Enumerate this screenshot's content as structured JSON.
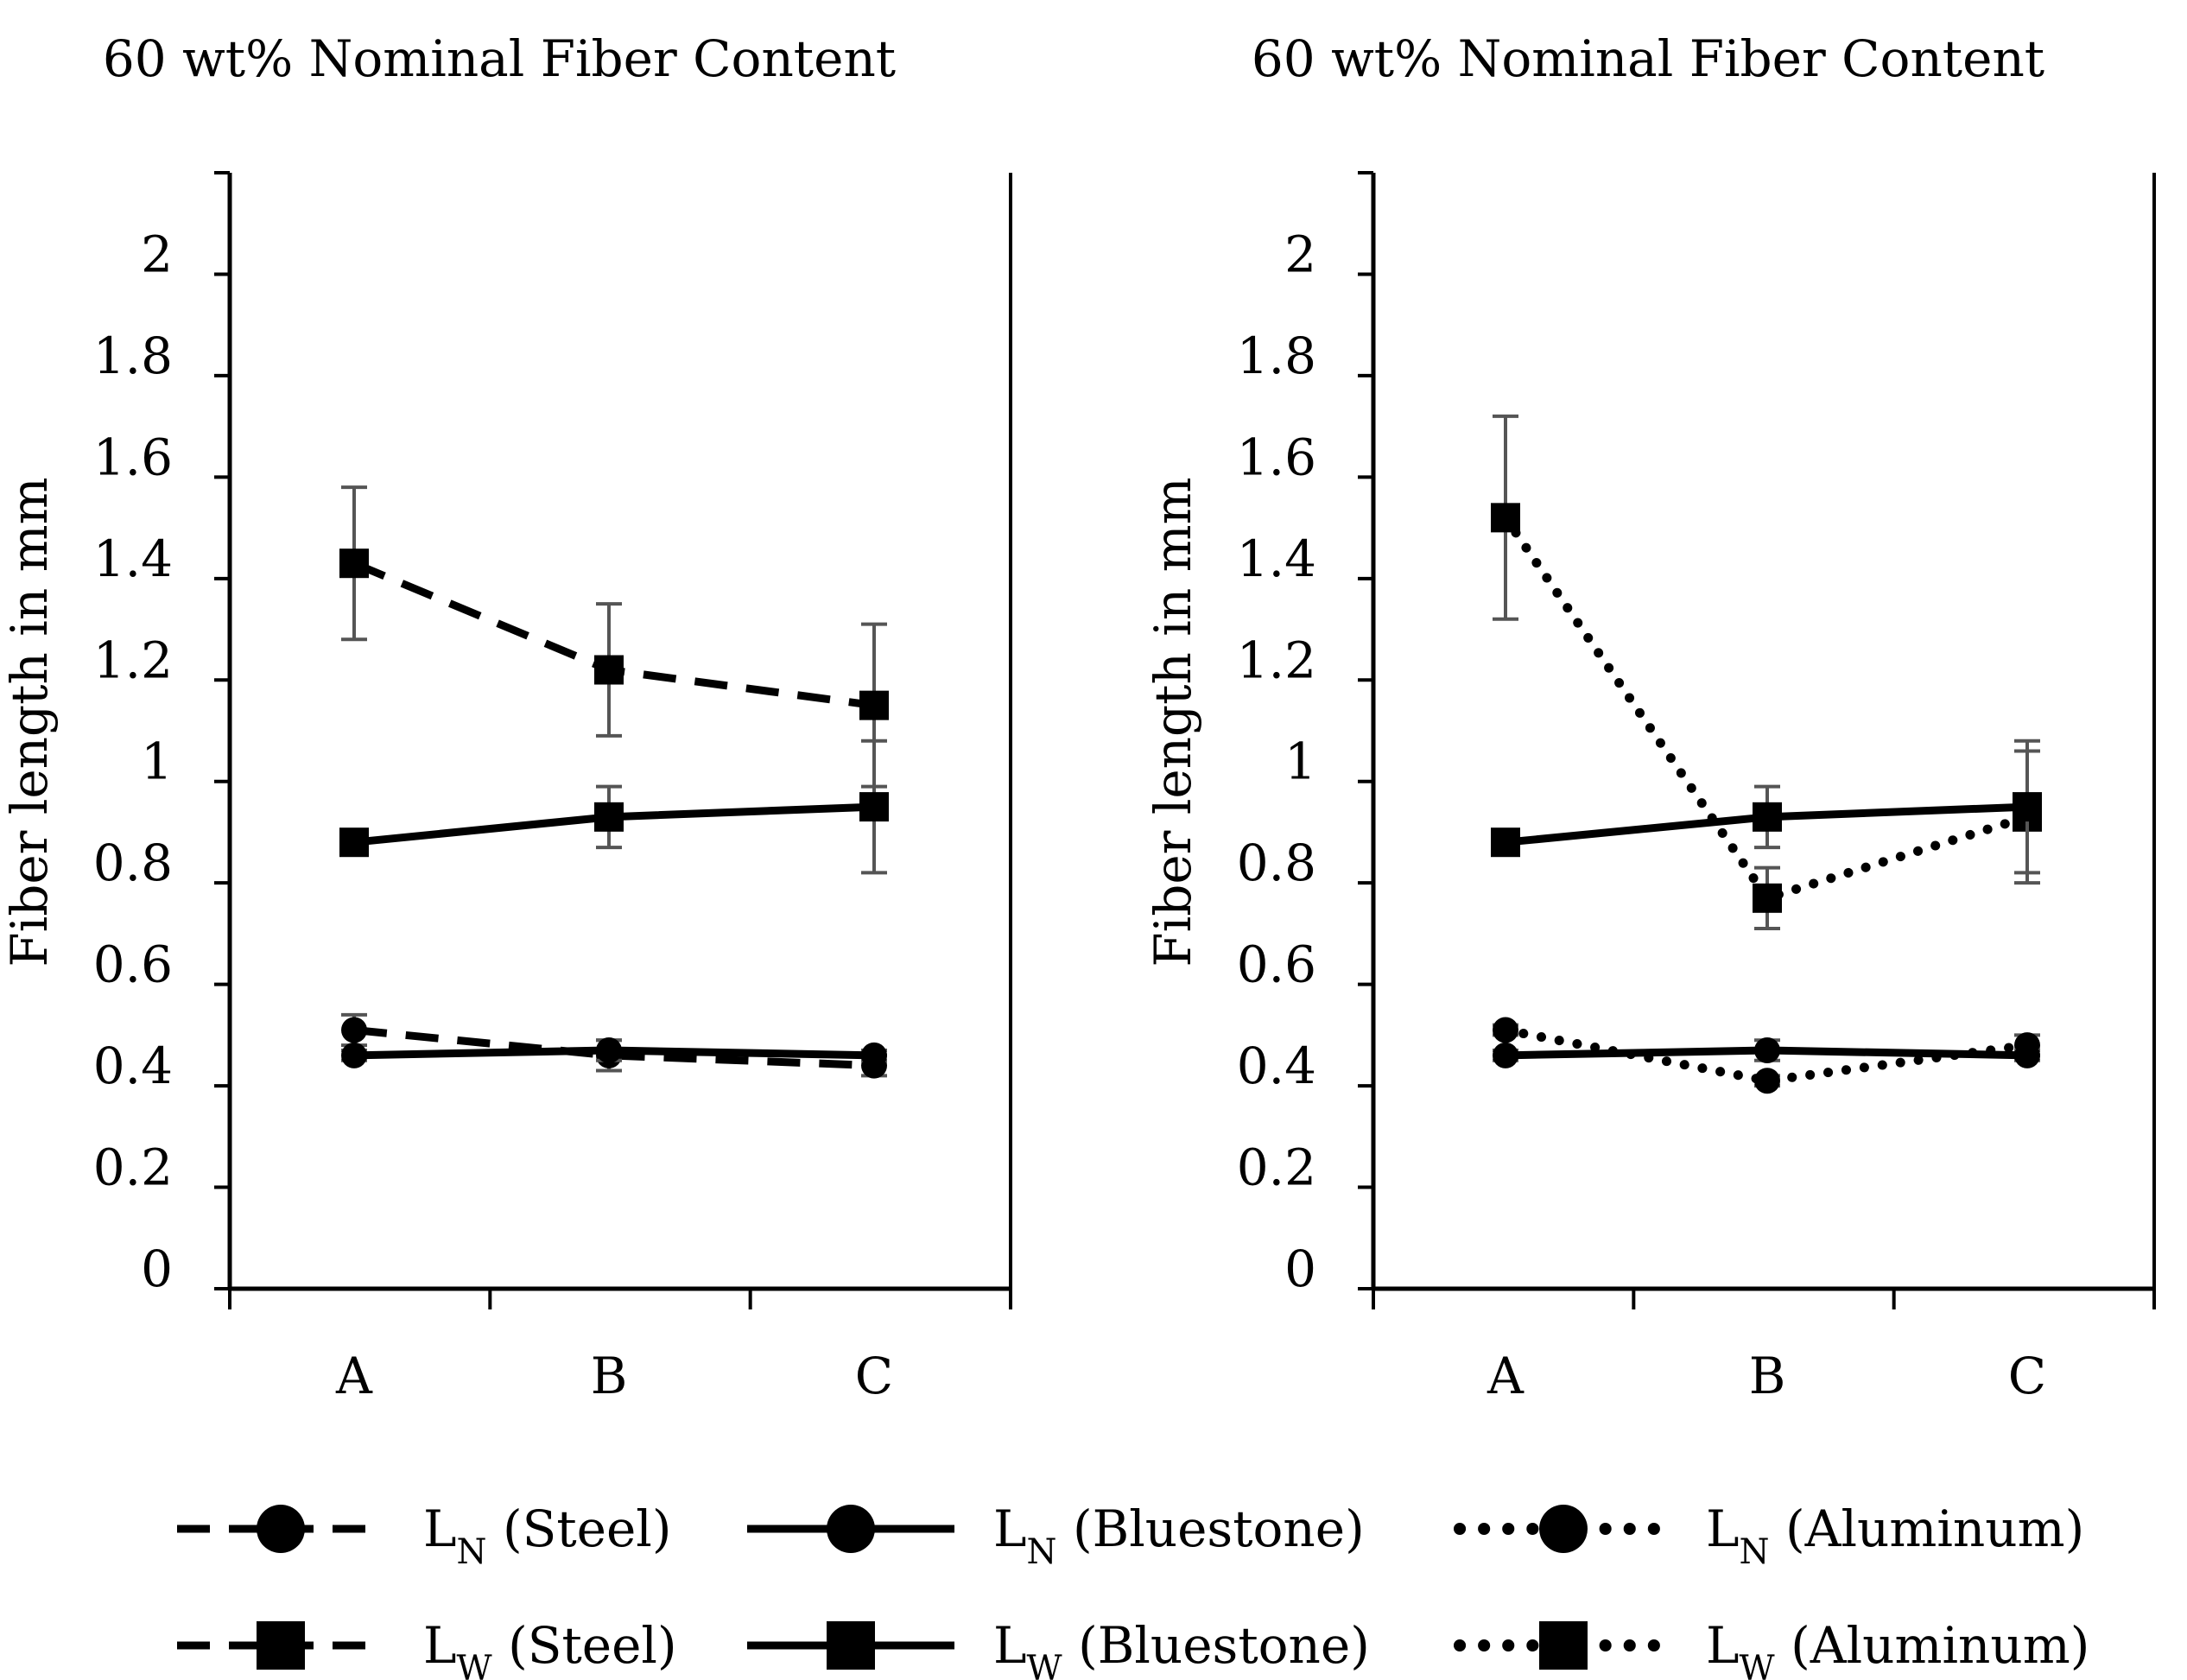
{
  "chart_data": [
    {
      "type": "line",
      "title": "60 wt% Nominal Fiber Content",
      "xlabel": "",
      "ylabel": "Fiber length in mm",
      "categories": [
        "A",
        "B",
        "C"
      ],
      "ylim": [
        0,
        2.2
      ],
      "yticks": [
        "0",
        "0.2",
        "0.4",
        "0.6",
        "0.8",
        "1",
        "1.2",
        "1.4",
        "1.6",
        "1.8",
        "2"
      ],
      "series": [
        {
          "name": "LN (Steel)",
          "style": "dashed",
          "marker": "circle",
          "values": [
            0.51,
            0.46,
            0.44
          ],
          "errors": [
            0.03,
            0.03,
            0.02
          ]
        },
        {
          "name": "LW (Steel)",
          "style": "dashed",
          "marker": "square",
          "values": [
            1.43,
            1.22,
            1.15
          ],
          "errors": [
            0.15,
            0.13,
            0.16
          ]
        },
        {
          "name": "LN (Bluestone)",
          "style": "solid",
          "marker": "circle",
          "values": [
            0.46,
            0.47,
            0.46
          ],
          "errors": [
            0.01,
            0.02,
            0.01
          ]
        },
        {
          "name": "LW (Bluestone)",
          "style": "solid",
          "marker": "square",
          "values": [
            0.88,
            0.93,
            0.95
          ],
          "errors": [
            0.02,
            0.06,
            0.13
          ]
        }
      ]
    },
    {
      "type": "line",
      "title": "60 wt% Nominal Fiber Content",
      "xlabel": "",
      "ylabel": "Fiber length in mm",
      "categories": [
        "A",
        "B",
        "C"
      ],
      "ylim": [
        0,
        2.2
      ],
      "yticks": [
        "0",
        "0.2",
        "0.4",
        "0.6",
        "0.8",
        "1",
        "1.2",
        "1.4",
        "1.6",
        "1.8",
        "2"
      ],
      "series": [
        {
          "name": "LN (Aluminum)",
          "style": "dotted",
          "marker": "circle",
          "values": [
            0.51,
            0.41,
            0.48
          ],
          "errors": [
            0.01,
            0.01,
            0.02
          ]
        },
        {
          "name": "LW (Aluminum)",
          "style": "dotted",
          "marker": "square",
          "values": [
            1.52,
            0.77,
            0.93
          ],
          "errors": [
            0.2,
            0.06,
            0.13
          ]
        },
        {
          "name": "LN (Bluestone)",
          "style": "solid",
          "marker": "circle",
          "values": [
            0.46,
            0.47,
            0.46
          ],
          "errors": [
            0.01,
            0.02,
            0.01
          ]
        },
        {
          "name": "LW (Bluestone)",
          "style": "solid",
          "marker": "square",
          "values": [
            0.88,
            0.93,
            0.95
          ],
          "errors": [
            0.02,
            0.06,
            0.13
          ]
        }
      ]
    }
  ],
  "legend": [
    {
      "base": "L",
      "sub": "N",
      "rest": " (Steel)",
      "style": "dashed",
      "marker": "circle"
    },
    {
      "base": "L",
      "sub": "N",
      "rest": " (Bluestone)",
      "style": "solid",
      "marker": "circle"
    },
    {
      "base": "L",
      "sub": "N",
      "rest": " (Aluminum)",
      "style": "dotted",
      "marker": "circle"
    },
    {
      "base": "L",
      "sub": "W",
      "rest": " (Steel)",
      "style": "dashed",
      "marker": "square"
    },
    {
      "base": "L",
      "sub": "W",
      "rest": " (Bluestone)",
      "style": "solid",
      "marker": "square"
    },
    {
      "base": "L",
      "sub": "W",
      "rest": " (Aluminum)",
      "style": "dotted",
      "marker": "square"
    }
  ],
  "colors": {
    "line": "#000000",
    "errorbar": "#555555",
    "background": "#ffffff"
  }
}
